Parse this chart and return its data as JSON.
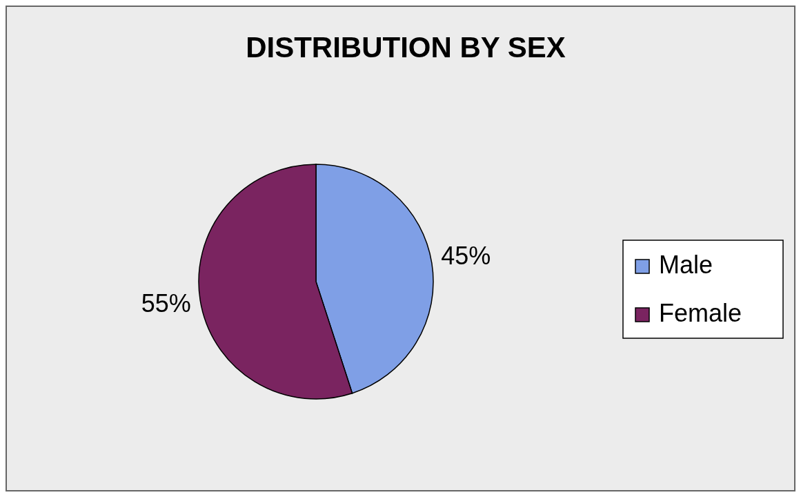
{
  "chart_data": {
    "type": "pie",
    "title": "DISTRIBUTION BY SEX",
    "categories": [
      "Male",
      "Female"
    ],
    "values": [
      45,
      55
    ],
    "colors": [
      "#7f9fe6",
      "#7a2460"
    ],
    "value_labels": [
      "45%",
      "55%"
    ],
    "legend": "right"
  }
}
